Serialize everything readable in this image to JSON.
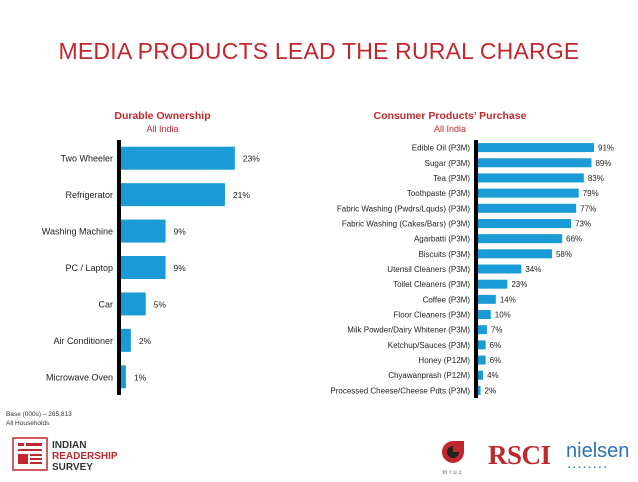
{
  "title": "MEDIA PRODUCTS LEAD THE RURAL CHARGE",
  "colors": {
    "accent": "#c0282d",
    "bar": "#1a9bd7",
    "axis": "#000000"
  },
  "footnote": {
    "line1": "Base (000s) – 265,813",
    "line2": "All Households"
  },
  "logos": {
    "rsci": "RSCI",
    "nielsen": "nielsen",
    "mruc": "mruc",
    "irs_line1": "INDIAN",
    "irs_line2": "READERSHIP",
    "irs_line3": "SURVEY"
  },
  "chart_data": [
    {
      "type": "bar",
      "orientation": "horizontal",
      "title": "Durable Ownership",
      "subtitle": "All India",
      "categories": [
        "Two Wheeler",
        "Refrigerator",
        "Washing Machine",
        "PC / Laptop",
        "Car",
        "Air Conditioner",
        "Microwave Oven"
      ],
      "values": [
        23,
        21,
        9,
        9,
        5,
        2,
        1
      ],
      "unit": "%",
      "xlim": [
        0,
        25
      ]
    },
    {
      "type": "bar",
      "orientation": "horizontal",
      "title": "Consumer Products’ Purchase",
      "subtitle": "All India",
      "categories": [
        "Edible Oil (P3M)",
        "Sugar (P3M)",
        "Tea (P3M)",
        "Toothpaste (P3M)",
        "Fabric Washing (Pwdrs/Lquds) (P3M)",
        "Fabric Washing (Cakes/Bars) (P3M)",
        "Agarbatti (P3M)",
        "Biscuits (P3M)",
        "Utensil Cleaners (P3M)",
        "Toilet Cleaners (P3M)",
        "Coffee (P3M)",
        "Floor Cleaners (P3M)",
        "Milk Powder/Dairy Whitener (P3M)",
        "Ketchup/Sauces (P3M)",
        "Honey (P12M)",
        "Chyawanprash (P12M)",
        "Processed Cheese/Cheese Pdts (P3M)"
      ],
      "values": [
        91,
        89,
        83,
        79,
        77,
        73,
        66,
        58,
        34,
        23,
        14,
        10,
        7,
        6,
        6,
        4,
        2
      ],
      "unit": "%",
      "xlim": [
        0,
        100
      ]
    }
  ]
}
